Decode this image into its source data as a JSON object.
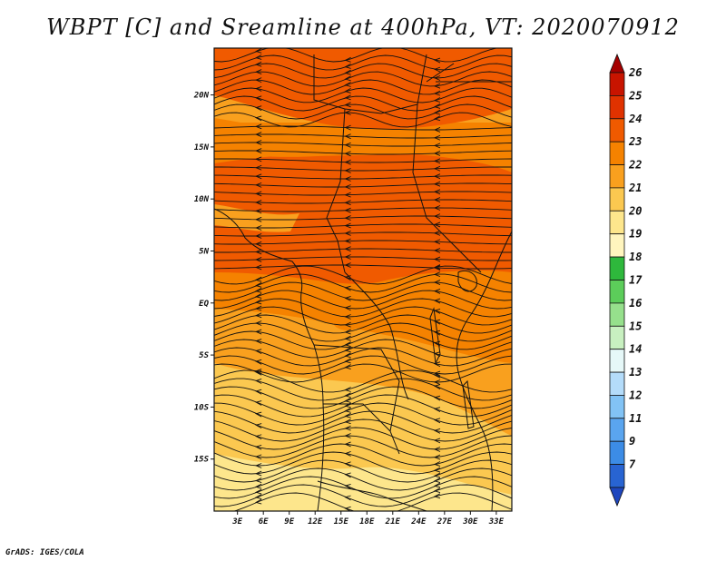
{
  "title": "WBPT [C] and Sreamline at 400hPa, VT: 2020070912",
  "credit": "GrADS: IGES/COLA",
  "map": {
    "variable": "WBPT [C]",
    "overlay": "Streamline",
    "level": "400hPa",
    "valid_time": "2020070912",
    "lat_labels": [
      {
        "text": "20N",
        "lat": 20
      },
      {
        "text": "15N",
        "lat": 15
      },
      {
        "text": "10N",
        "lat": 10
      },
      {
        "text": "5N",
        "lat": 5
      },
      {
        "text": "EQ",
        "lat": 0
      },
      {
        "text": "5S",
        "lat": -5
      },
      {
        "text": "10S",
        "lat": -10
      },
      {
        "text": "15S",
        "lat": -15
      }
    ],
    "lon_labels": [
      {
        "text": "3E",
        "lon": 3
      },
      {
        "text": "6E",
        "lon": 6
      },
      {
        "text": "9E",
        "lon": 9
      },
      {
        "text": "12E",
        "lon": 12
      },
      {
        "text": "15E",
        "lon": 15
      },
      {
        "text": "18E",
        "lon": 18
      },
      {
        "text": "21E",
        "lon": 21
      },
      {
        "text": "24E",
        "lon": 24
      },
      {
        "text": "27E",
        "lon": 27
      },
      {
        "text": "30E",
        "lon": 30
      },
      {
        "text": "33E",
        "lon": 33
      }
    ],
    "lat_range": [
      -20,
      24.5
    ],
    "lon_range": [
      0.3,
      34.8
    ]
  },
  "colorbar": {
    "labels": [
      "26",
      "25",
      "24",
      "23",
      "22",
      "21",
      "20",
      "19",
      "18",
      "17",
      "16",
      "15",
      "14",
      "13",
      "12",
      "11",
      "9",
      "7"
    ],
    "colors": [
      "#a50000",
      "#c81400",
      "#e03200",
      "#f05a00",
      "#f58200",
      "#f9a01e",
      "#fbc850",
      "#fde68c",
      "#fff5be",
      "#2eb83c",
      "#5ccd5a",
      "#96e08c",
      "#c8f0c0",
      "#e6f8f8",
      "#b4dcfa",
      "#82c3f5",
      "#5aa5ef",
      "#3c8ce6",
      "#2864d2",
      "#1e46be"
    ]
  }
}
